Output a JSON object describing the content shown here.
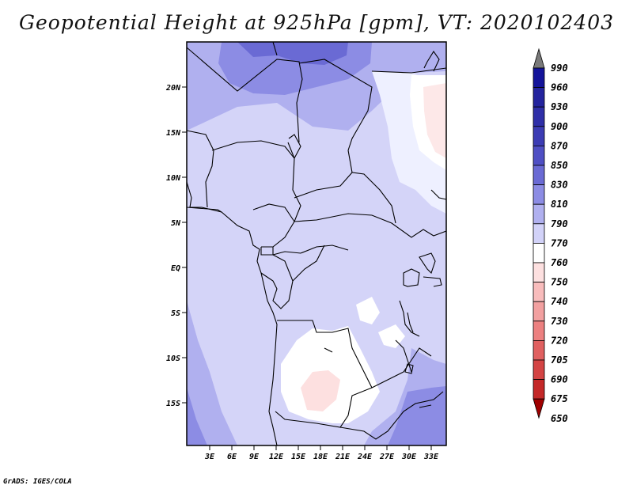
{
  "title": "Geopotential Height at 925hPa [gpm], VT: 2020102403",
  "credit": "GrADS: IGES/COLA",
  "map": {
    "lat_labels": [
      "20N",
      "15N",
      "10N",
      "5N",
      "EQ",
      "5S",
      "10S",
      "15S"
    ],
    "lon_labels": [
      "3E",
      "6E",
      "9E",
      "12E",
      "15E",
      "18E",
      "21E",
      "24E",
      "27E",
      "30E",
      "33E"
    ]
  },
  "colorbar": {
    "levels": [
      "990",
      "960",
      "930",
      "900",
      "870",
      "850",
      "830",
      "810",
      "790",
      "770",
      "760",
      "750",
      "740",
      "730",
      "720",
      "705",
      "690",
      "675",
      "650"
    ],
    "colors": [
      "#7a7a7a",
      "#14149a",
      "#24249e",
      "#2f2fa8",
      "#3c3cb4",
      "#4f4fc4",
      "#6a6ad4",
      "#8c8ce4",
      "#b0b0ef",
      "#d2d2f8",
      "#ffffff",
      "#fde0e0",
      "#f8bcbc",
      "#f2a0a0",
      "#ec8080",
      "#e06060",
      "#d44444",
      "#c42828",
      "#a00000"
    ]
  }
}
